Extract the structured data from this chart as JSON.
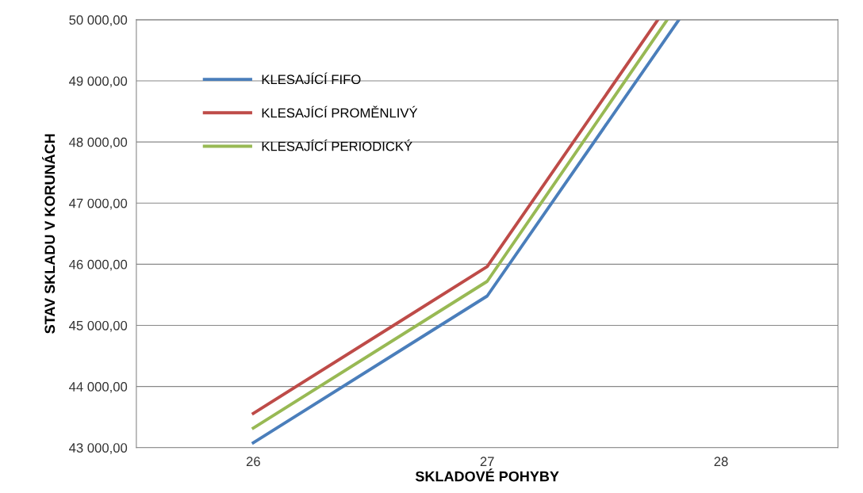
{
  "chart_data": {
    "type": "line",
    "xlabel": "SKLADOVÉ POHYBY",
    "ylabel": "STAV SKLADU V KORUNÁCH",
    "xlim": [
      25.5,
      28.5
    ],
    "xticks": [
      26,
      27,
      28
    ],
    "ylim": [
      43000,
      50000
    ],
    "yticks": [
      {
        "value": 43000,
        "label": "43 000,00"
      },
      {
        "value": 44000,
        "label": "44 000,00"
      },
      {
        "value": 45000,
        "label": "45 000,00"
      },
      {
        "value": 46000,
        "label": "46 000,00"
      },
      {
        "value": 47000,
        "label": "47 000,00"
      },
      {
        "value": 48000,
        "label": "48 000,00"
      },
      {
        "value": 49000,
        "label": "49 000,00"
      },
      {
        "value": 50000,
        "label": "50 000,00"
      }
    ],
    "grid": "y",
    "legend": "top left",
    "marker": "none",
    "line_style": "solid",
    "series": [
      {
        "name": "KLESAJÍCÍ FIFO",
        "color": "#4a7ebb",
        "x": [
          26,
          27,
          27.82
        ],
        "values": [
          43080,
          45480,
          50000
        ]
      },
      {
        "name": "KLESAJÍCÍ PROMĚNLIVÝ",
        "color": "#be4b48",
        "x": [
          26,
          27,
          27.73
        ],
        "values": [
          43560,
          45960,
          50000
        ]
      },
      {
        "name": "KLESAJÍCÍ PERIODICKÝ",
        "color": "#98b954",
        "x": [
          26,
          27,
          27.77
        ],
        "values": [
          43320,
          45720,
          50000
        ]
      }
    ]
  }
}
